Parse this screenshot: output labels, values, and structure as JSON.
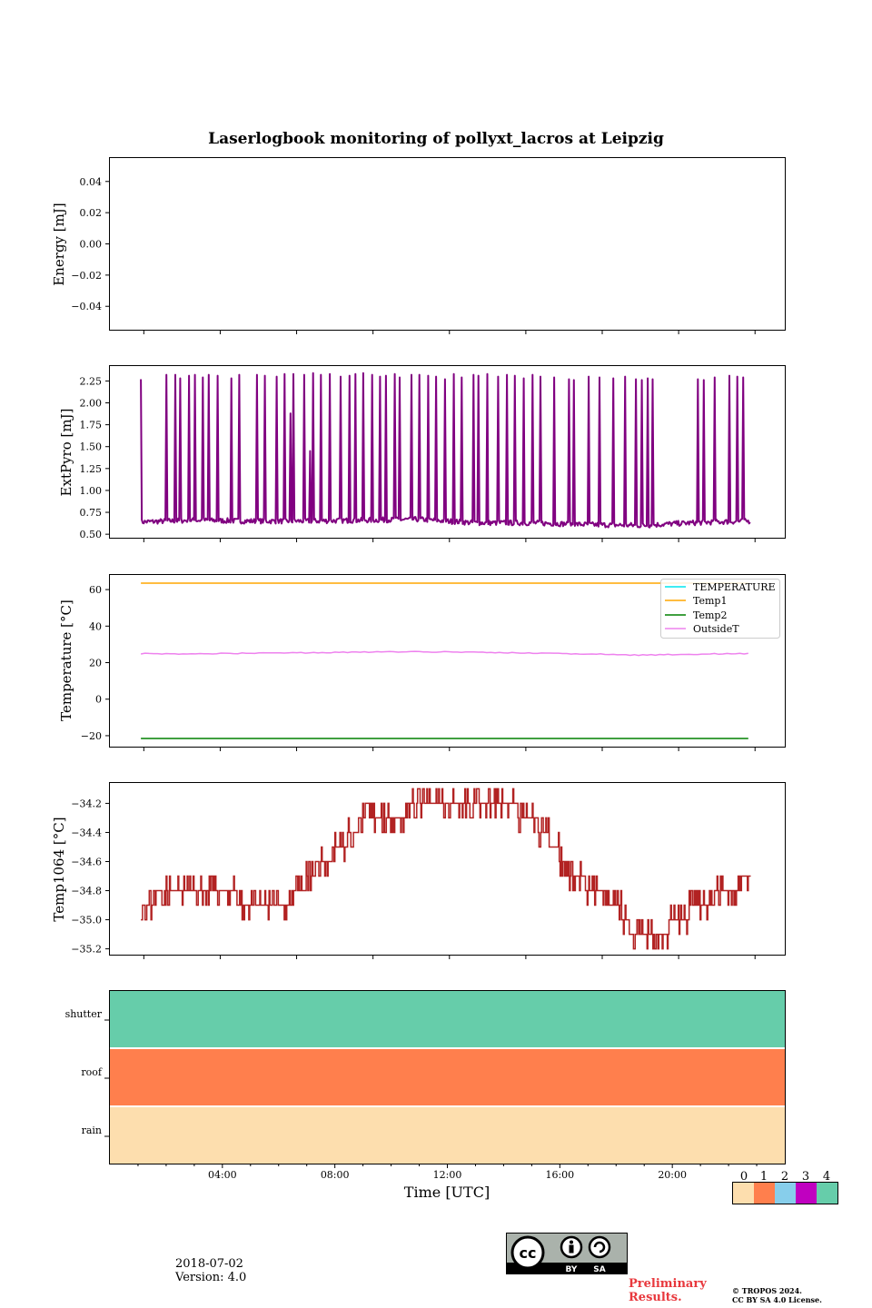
{
  "title": "Laserlogbook monitoring of pollyxt_lacros at Leipzig",
  "footer": {
    "date": "2018-07-02",
    "version": "Version: 4.0",
    "preliminary_line1": "Preliminary",
    "preliminary_line2": "Results.",
    "copyright_line1": "© TROPOS 2024.",
    "copyright_line2": "CC BY SA 4.0 License.",
    "license_labels": [
      "BY",
      "SA"
    ],
    "license_icon": "cc-by-sa-icon"
  },
  "colors": {
    "extpyro": "#800080",
    "temperature": "#00e5ee",
    "temp1": "#ffa500",
    "temp2": "#008000",
    "outsideT": "#ee82ee",
    "temp1064": "#b22222",
    "flag0": "#fddeae",
    "flag1": "#ff7f4d",
    "flag2": "#87ceeb",
    "flag3": "#c000c0",
    "flag4": "#66cdaa"
  },
  "chart_data": [
    {
      "type": "line",
      "panel": "energy",
      "ylabel": "Energy [mJ]",
      "ylim": [
        -0.055,
        0.055
      ],
      "yticks": [
        -0.04,
        -0.02,
        0.0,
        0.02,
        0.04
      ],
      "ytick_labels": [
        "−0.04",
        "−0.02",
        "0.00",
        "0.02",
        "0.04"
      ],
      "series": []
    },
    {
      "type": "line",
      "panel": "extpyro",
      "ylabel": "ExtPyro [mJ]",
      "ylim": [
        0.46,
        2.42
      ],
      "yticks": [
        0.5,
        0.75,
        1.0,
        1.25,
        1.5,
        1.75,
        2.0,
        2.25
      ],
      "ytick_labels": [
        "0.50",
        "0.75",
        "1.00",
        "1.25",
        "1.50",
        "1.75",
        "2.00",
        "2.25"
      ],
      "x_range_hours": [
        0.0,
        24.0
      ],
      "baseline": [
        [
          1.1,
          0.64
        ],
        [
          3.0,
          0.66
        ],
        [
          5.0,
          0.65
        ],
        [
          7.0,
          0.65
        ],
        [
          9.0,
          0.66
        ],
        [
          11.0,
          0.67
        ],
        [
          13.0,
          0.63
        ],
        [
          15.0,
          0.63
        ],
        [
          17.0,
          0.61
        ],
        [
          19.0,
          0.6
        ],
        [
          20.0,
          0.62
        ],
        [
          21.5,
          0.64
        ],
        [
          22.8,
          0.65
        ]
      ],
      "spikes": [
        [
          1.1,
          2.27
        ],
        [
          2.0,
          2.32
        ],
        [
          2.3,
          2.32
        ],
        [
          2.5,
          2.28
        ],
        [
          2.8,
          2.31
        ],
        [
          3.0,
          2.32
        ],
        [
          3.3,
          2.29
        ],
        [
          3.5,
          2.32
        ],
        [
          3.8,
          2.31
        ],
        [
          4.3,
          2.28
        ],
        [
          4.6,
          2.32
        ],
        [
          5.2,
          2.32
        ],
        [
          5.5,
          2.31
        ],
        [
          5.9,
          2.3
        ],
        [
          6.2,
          2.33
        ],
        [
          6.4,
          1.88
        ],
        [
          6.5,
          2.33
        ],
        [
          6.9,
          2.32
        ],
        [
          7.1,
          1.45
        ],
        [
          7.2,
          2.34
        ],
        [
          7.5,
          2.32
        ],
        [
          7.8,
          2.33
        ],
        [
          8.2,
          2.3
        ],
        [
          8.5,
          2.31
        ],
        [
          8.7,
          2.33
        ],
        [
          9.0,
          2.34
        ],
        [
          9.3,
          2.32
        ],
        [
          9.6,
          2.3
        ],
        [
          9.8,
          2.31
        ],
        [
          10.1,
          2.33
        ],
        [
          10.3,
          2.29
        ],
        [
          10.7,
          2.32
        ],
        [
          11.0,
          2.32
        ],
        [
          11.3,
          2.31
        ],
        [
          11.6,
          2.3
        ],
        [
          11.9,
          2.27
        ],
        [
          12.2,
          2.33
        ],
        [
          12.5,
          2.29
        ],
        [
          12.9,
          2.32
        ],
        [
          13.1,
          2.31
        ],
        [
          13.4,
          2.33
        ],
        [
          13.8,
          2.3
        ],
        [
          14.1,
          2.32
        ],
        [
          14.4,
          2.31
        ],
        [
          14.7,
          2.28
        ],
        [
          15.0,
          2.32
        ],
        [
          15.3,
          2.3
        ],
        [
          15.8,
          2.29
        ],
        [
          16.3,
          2.27
        ],
        [
          16.5,
          2.26
        ],
        [
          17.0,
          2.3
        ],
        [
          17.4,
          2.29
        ],
        [
          17.9,
          2.28
        ],
        [
          18.3,
          2.3
        ],
        [
          18.7,
          2.27
        ],
        [
          18.9,
          2.26
        ],
        [
          19.1,
          2.28
        ],
        [
          19.3,
          2.27
        ],
        [
          20.9,
          2.27
        ],
        [
          21.1,
          2.26
        ],
        [
          21.5,
          2.29
        ],
        [
          22.0,
          2.31
        ],
        [
          22.3,
          2.3
        ],
        [
          22.5,
          2.29
        ],
        [
          22.8,
          2.33
        ]
      ]
    },
    {
      "type": "line",
      "panel": "temperature",
      "ylabel": "Temperature [°C]",
      "ylim": [
        -26,
        68
      ],
      "yticks": [
        -20,
        0,
        20,
        40,
        60
      ],
      "ytick_labels": [
        "−20",
        "0",
        "20",
        "40",
        "60"
      ],
      "legend_position": "upper right",
      "series": [
        {
          "name": "TEMPERATURE",
          "color_key": "temperature",
          "x": [],
          "values": []
        },
        {
          "name": "Temp1",
          "color_key": "temp1",
          "x": [
            1.1,
            22.8
          ],
          "values": [
            63.5,
            63.5
          ]
        },
        {
          "name": "Temp2",
          "color_key": "temp2",
          "x": [
            1.1,
            22.8
          ],
          "values": [
            -21.5,
            -21.5
          ]
        },
        {
          "name": "OutsideT",
          "color_key": "outsideT",
          "x": [
            1.1,
            3,
            5,
            7,
            9,
            11,
            13,
            15,
            17,
            18.5,
            20,
            21.5,
            22.8
          ],
          "values": [
            25,
            24.8,
            25.2,
            25.4,
            25.8,
            26.0,
            25.7,
            25.2,
            24.8,
            24.1,
            24.4,
            24.8,
            25.0
          ]
        }
      ]
    },
    {
      "type": "line",
      "panel": "temp1064",
      "ylabel": "Temp1064 [°C]",
      "ylim": [
        -35.24,
        -34.06
      ],
      "yticks": [
        -35.2,
        -35.0,
        -34.8,
        -34.6,
        -34.4,
        -34.2
      ],
      "ytick_labels": [
        "−35.2",
        "−35.0",
        "−34.8",
        "−34.6",
        "−34.4",
        "−34.2"
      ],
      "series": [
        {
          "name": "",
          "color_key": "temp1064",
          "x": [
            1.1,
            2.0,
            3.0,
            4.0,
            5.0,
            6.0,
            6.8,
            7.5,
            8.3,
            9.0,
            10.0,
            11.0,
            12.0,
            13.0,
            14.0,
            15.0,
            15.8,
            16.5,
            17.3,
            18.0,
            18.7,
            19.5,
            20.2,
            21.0,
            22.0,
            22.8
          ],
          "values": [
            -34.9,
            -34.8,
            -34.8,
            -34.8,
            -34.9,
            -34.9,
            -34.8,
            -34.6,
            -34.5,
            -34.3,
            -34.3,
            -34.2,
            -34.2,
            -34.2,
            -34.2,
            -34.3,
            -34.5,
            -34.7,
            -34.8,
            -34.9,
            -35.1,
            -35.1,
            -35.0,
            -34.9,
            -34.8,
            -34.7
          ],
          "noise_amplitude": 0.1
        }
      ]
    },
    {
      "type": "heatmap",
      "panel": "flags",
      "rows": [
        "shutter",
        "roof",
        "rain"
      ],
      "row_values": [
        4,
        1,
        0
      ],
      "xlabel": "Time [UTC]",
      "xlim_hours": [
        0.0,
        24.0
      ],
      "xticks_hours": [
        4,
        8,
        12,
        16,
        20
      ],
      "xtick_labels": [
        "04:00",
        "08:00",
        "12:00",
        "16:00",
        "20:00"
      ],
      "colorbar_ticks": [
        "0",
        "1",
        "2",
        "3",
        "4"
      ]
    }
  ]
}
